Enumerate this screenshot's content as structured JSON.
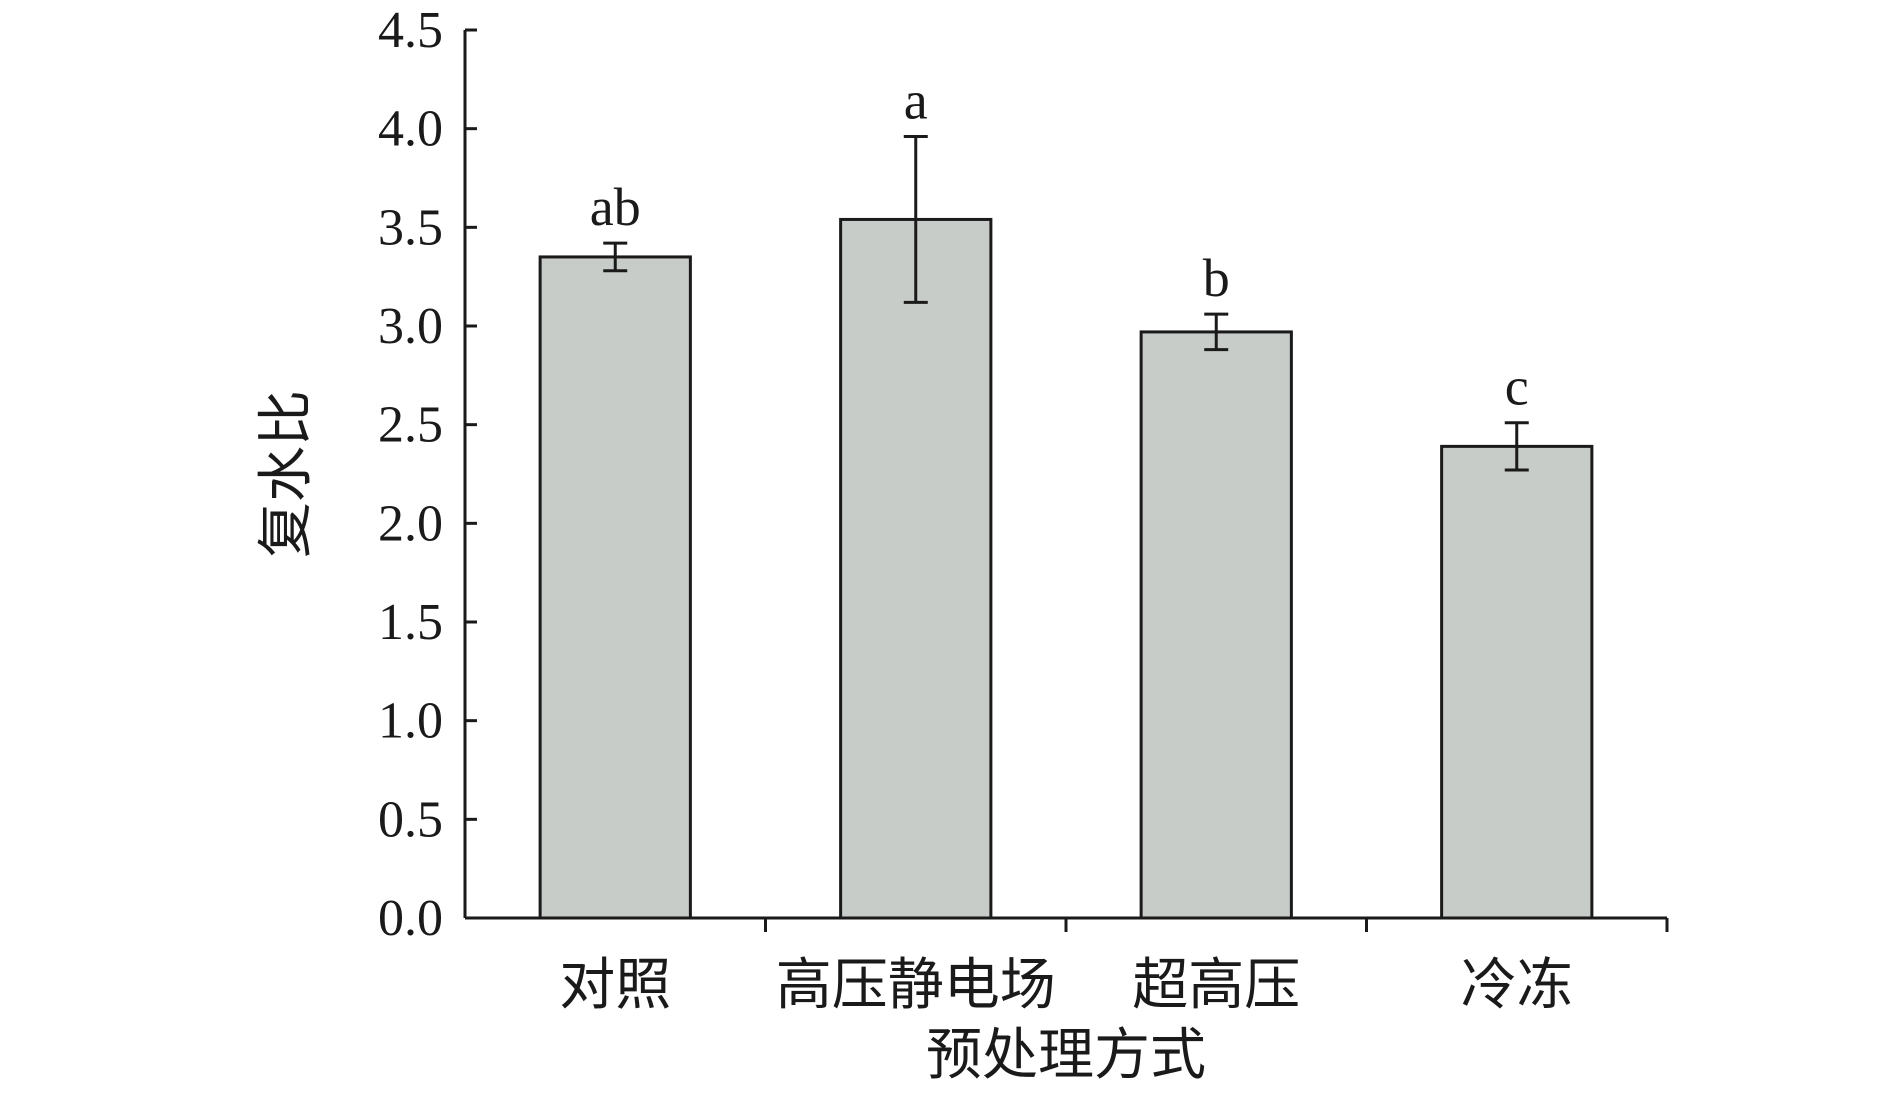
{
  "chart_data": {
    "type": "bar",
    "title": "",
    "xlabel": "预处理方式",
    "ylabel": "复水比",
    "categories": [
      "对照",
      "高压静电场",
      "超高压",
      "冷冻"
    ],
    "values": [
      3.35,
      3.54,
      2.97,
      2.39
    ],
    "errors": [
      0.07,
      0.42,
      0.09,
      0.12
    ],
    "significance_letters": [
      "ab",
      "a",
      "b",
      "c"
    ],
    "ylim": [
      0,
      4.5
    ],
    "yticks": [
      "0.0",
      "0.5",
      "1.0",
      "1.5",
      "2.0",
      "2.5",
      "3.0",
      "3.5",
      "4.0",
      "4.5"
    ],
    "grid": false,
    "legend": "none",
    "bar_color": "#c8ccc8",
    "bar_edge_color": "#1a1a1a"
  }
}
